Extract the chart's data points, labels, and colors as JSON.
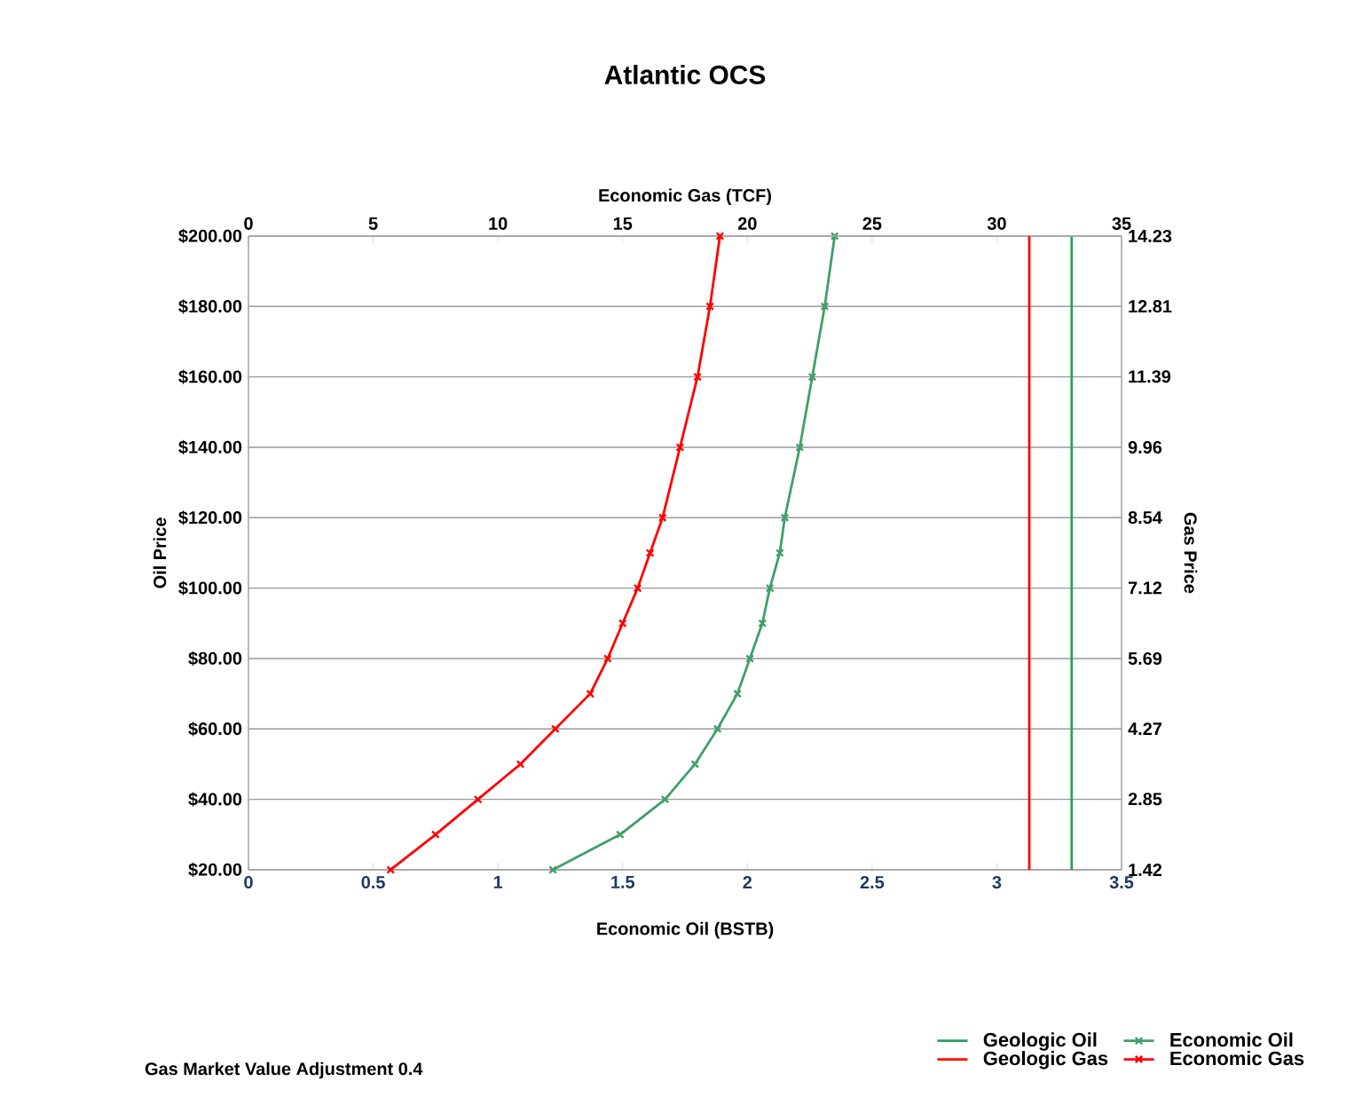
{
  "chart_data": {
    "type": "line",
    "title": "Atlantic OCS",
    "xlabel": "Economic Oil (BSTB)",
    "x2label": "Economic Gas (TCF)",
    "ylabel": "Oil Price",
    "y2label": "Gas Price",
    "xlim": [
      0,
      3.5
    ],
    "xticks": [
      0,
      0.5,
      1,
      1.5,
      2,
      2.5,
      3,
      3.5
    ],
    "x2lim": [
      0,
      35
    ],
    "x2ticks": [
      0,
      5,
      10,
      15,
      20,
      25,
      30,
      35
    ],
    "ylim": [
      20,
      200
    ],
    "yticks": [
      {
        "value": 20,
        "label": "$20.00"
      },
      {
        "value": 40,
        "label": "$40.00"
      },
      {
        "value": 60,
        "label": "$60.00"
      },
      {
        "value": 80,
        "label": "$80.00"
      },
      {
        "value": 100,
        "label": "$100.00"
      },
      {
        "value": 120,
        "label": "$120.00"
      },
      {
        "value": 140,
        "label": "$140.00"
      },
      {
        "value": 160,
        "label": "$160.00"
      },
      {
        "value": 180,
        "label": "$180.00"
      },
      {
        "value": 200,
        "label": "$200.00"
      }
    ],
    "y2lim": [
      1.42,
      14.23
    ],
    "y2ticks": [
      1.42,
      2.85,
      4.27,
      5.69,
      7.12,
      8.54,
      9.96,
      11.39,
      12.81,
      14.23
    ],
    "grid": "y",
    "legend": "bottom right",
    "line_style": "solid",
    "annotations": [
      "Gas Market Value Adjustment 0.4"
    ],
    "series": [
      {
        "name": "Geologic Oil",
        "color": "#2e9e5b",
        "marker": "none",
        "x": [
          3.3,
          3.3
        ],
        "values": [
          20,
          200
        ]
      },
      {
        "name": "Economic Oil",
        "color": "#3f9f6a",
        "marker": "cross",
        "x": [
          1.22,
          1.49,
          1.67,
          1.79,
          1.88,
          1.96,
          2.01,
          2.06,
          2.09,
          2.13,
          2.15,
          2.21,
          2.26,
          2.31,
          2.35
        ],
        "values": [
          20,
          30,
          40,
          50,
          60,
          70,
          80,
          90,
          100,
          110,
          120,
          140,
          160,
          180,
          200
        ]
      },
      {
        "name": "Geologic Gas",
        "color": "#ff0000",
        "marker": "none",
        "axis": "x2",
        "x": [
          31.3,
          31.3
        ],
        "values": [
          20,
          200
        ]
      },
      {
        "name": "Economic Gas",
        "color": "#ff0000",
        "marker": "cross",
        "axis": "x2",
        "x": [
          5.7,
          7.5,
          9.2,
          10.9,
          12.3,
          13.7,
          14.4,
          15.0,
          15.6,
          16.1,
          16.6,
          17.3,
          18.0,
          18.5,
          18.9
        ],
        "values": [
          20,
          30,
          40,
          50,
          60,
          70,
          80,
          90,
          100,
          110,
          120,
          140,
          160,
          180,
          200
        ]
      }
    ]
  }
}
